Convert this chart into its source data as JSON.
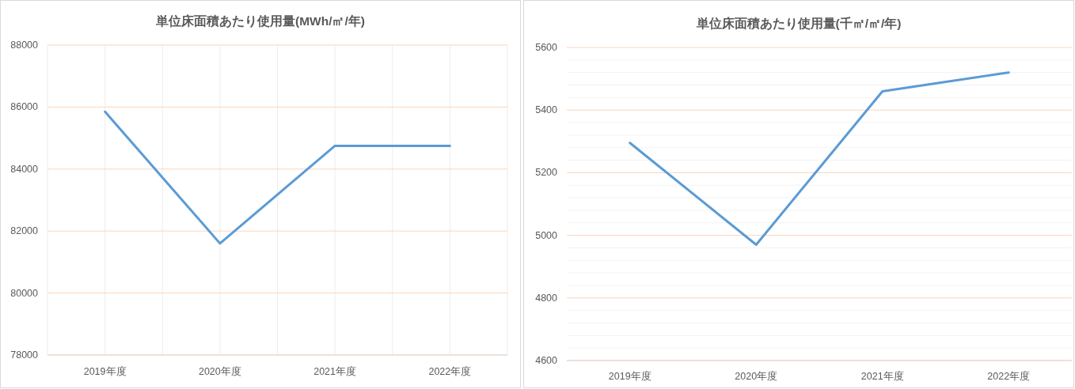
{
  "chart_data": [
    {
      "type": "line",
      "title": "単位床面積あたり使用量(MWh/㎡/年)",
      "categories": [
        "2019年度",
        "2020年度",
        "2021年度",
        "2022年度"
      ],
      "values": [
        85850,
        81600,
        84750,
        84750
      ],
      "color": "#5b9bd5",
      "ylim": [
        78000,
        88000
      ],
      "yticks": [
        78000,
        80000,
        82000,
        84000,
        86000,
        88000
      ],
      "grid": true
    },
    {
      "type": "line",
      "title": "単位床面積あたり使用量(千㎡/㎡/年)",
      "categories": [
        "2019年度",
        "2020年度",
        "2021年度",
        "2022年度"
      ],
      "values": [
        5295,
        4970,
        5460,
        5520
      ],
      "color": "#5b9bd5",
      "ylim": [
        4600,
        5600
      ],
      "yticks": [
        4600,
        {
          "value": 4640,
          "label": null
        },
        {
          "value": 4680,
          "label": null
        },
        {
          "value": 4720,
          "label": null
        },
        {
          "value": 4760,
          "label": null
        },
        4800,
        {
          "value": 4840,
          "label": null
        },
        {
          "value": 4880,
          "label": null
        },
        {
          "value": 4920,
          "label": null
        },
        {
          "value": 4960,
          "label": null
        },
        5000,
        {
          "value": 5040,
          "label": null
        },
        {
          "value": 5080,
          "label": null
        },
        {
          "value": 5120,
          "label": null
        },
        {
          "value": 5160,
          "label": null
        },
        5200,
        {
          "value": 5240,
          "label": null
        },
        {
          "value": 5280,
          "label": null
        },
        {
          "value": 5320,
          "label": null
        },
        {
          "value": 5360,
          "label": null
        },
        5400,
        {
          "value": 5440,
          "label": null
        },
        {
          "value": 5480,
          "label": null
        },
        {
          "value": 5520,
          "label": null
        },
        {
          "value": 5560,
          "label": null
        },
        5600
      ],
      "grid": "y"
    }
  ]
}
